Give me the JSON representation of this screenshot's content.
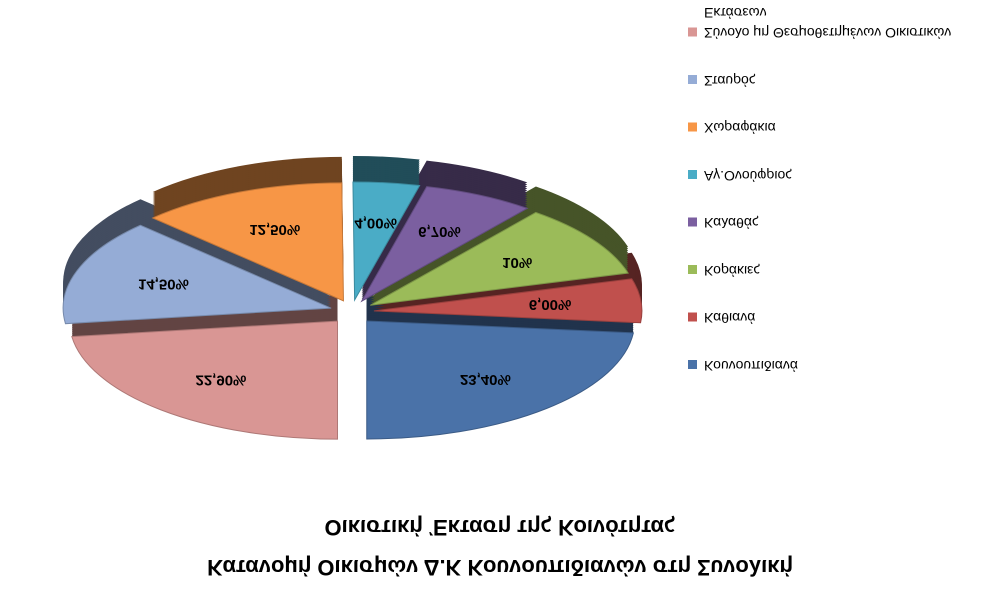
{
  "chart_data": {
    "type": "pie",
    "title": [
      "Κατανομή Οικισμών Δ.Κ Κουνουπιδιανών στη Συνολική",
      "Οικιστική Έκταση της Κοινότητας"
    ],
    "categories": [
      "Κουνουπιδιανά",
      "Καθιανά",
      "Κοράκιες",
      "Καλαθάς",
      "Αγ.Ονούφριος",
      "Χωραφάκια",
      "Σταυρός",
      "Σύνολο μη Θεσμοθετημένων Οικιστικών Εκτάσεων"
    ],
    "values": [
      23.4,
      6,
      10,
      6.7,
      4,
      12.5,
      14.5,
      22.9
    ],
    "value_labels": [
      "23,40%",
      "6,00%",
      "10%",
      "6,70%",
      "4,00%",
      "12,50%",
      "14,50%",
      "22,90%"
    ],
    "colors": [
      "#4a72a8",
      "#c0504d",
      "#9bbb59",
      "#7b5fa0",
      "#4aacc6",
      "#f79646",
      "#95acd6",
      "#d99694"
    ],
    "legend": "right"
  }
}
